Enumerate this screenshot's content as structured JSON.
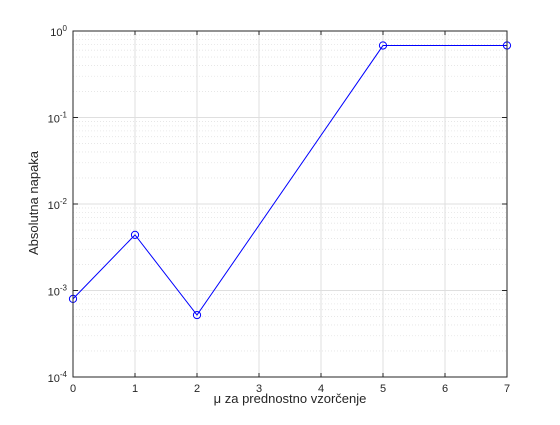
{
  "chart_data": {
    "type": "line",
    "title": "",
    "xlabel": "μ za prednostno vzorčenje",
    "ylabel": "Absolutna napaka",
    "xlim": [
      0,
      7
    ],
    "ylim": [
      0.0001,
      1
    ],
    "yscale": "log",
    "grid": true,
    "minor_grid": true,
    "legend": "none",
    "x_ticks": [
      "0",
      "1",
      "2",
      "3",
      "4",
      "5",
      "6",
      "7"
    ],
    "y_ticks": [
      {
        "base": "10",
        "exp": "0"
      },
      {
        "base": "10",
        "exp": "-1"
      },
      {
        "base": "10",
        "exp": "-2"
      },
      {
        "base": "10",
        "exp": "-3"
      },
      {
        "base": "10",
        "exp": "-4"
      }
    ],
    "series": [
      {
        "x": [
          0,
          1,
          2,
          5,
          7
        ],
        "y": [
          0.0008,
          0.0044,
          0.00052,
          0.68,
          0.68
        ],
        "color": "#0000ff",
        "marker": "circle"
      }
    ]
  }
}
